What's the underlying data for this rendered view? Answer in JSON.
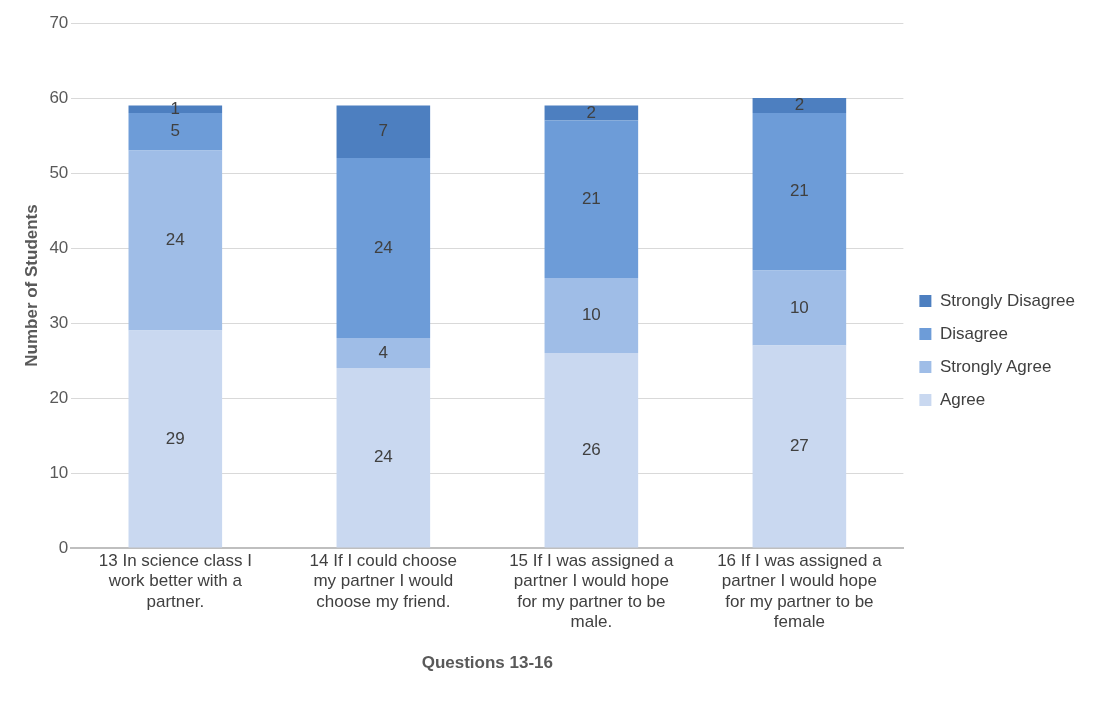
{
  "chart_data": {
    "type": "bar",
    "stacked": true,
    "xlabel": "Questions 13-16",
    "ylabel": "Number of Students",
    "categories": [
      "13 In science class I work better with a partner.",
      "14 If I could choose my partner I would choose my friend.",
      "15 If I was assigned a partner I would hope for my partner to be male.",
      "16 If I was assigned a partner I would hope for my partner to be female"
    ],
    "series": [
      {
        "name": "Agree",
        "color": "#c9d8f0",
        "values": [
          29,
          24,
          26,
          27
        ]
      },
      {
        "name": "Strongly Agree",
        "color": "#9fbde7",
        "values": [
          24,
          4,
          10,
          10
        ]
      },
      {
        "name": "Disagree",
        "color": "#6d9cd8",
        "values": [
          5,
          24,
          21,
          21
        ]
      },
      {
        "name": "Strongly Disagree",
        "color": "#4d7fc0",
        "values": [
          1,
          7,
          2,
          2
        ]
      }
    ],
    "ylim": [
      0,
      70
    ],
    "yticks": [
      0,
      10,
      20,
      30,
      40,
      50,
      60,
      70
    ],
    "grid": "y",
    "legend": "right",
    "data_labels": true
  }
}
